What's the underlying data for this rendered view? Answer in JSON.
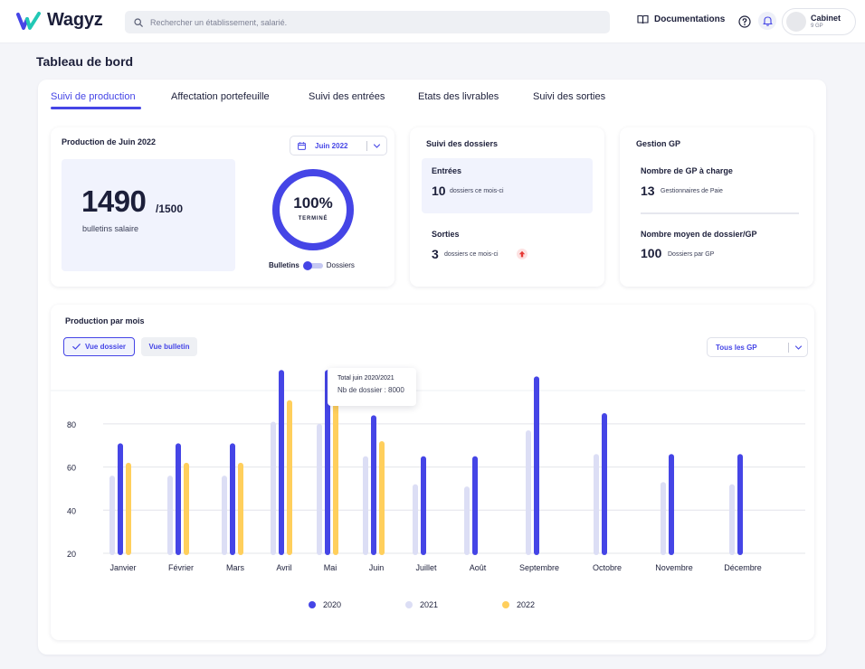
{
  "app": {
    "name": "Wagyz"
  },
  "search": {
    "placeholder": "Rechercher un établissement, salarié."
  },
  "header": {
    "docs_label": "Documentations",
    "account_name": "Cabinet",
    "account_sub": "9 GP"
  },
  "page": {
    "title": "Tableau de bord"
  },
  "tabs": [
    {
      "label": "Suivi de production",
      "active": true
    },
    {
      "label": "Affectation portefeuille"
    },
    {
      "label": "Suivi des entrées"
    },
    {
      "label": "Etats des livrables"
    },
    {
      "label": "Suivi des sorties"
    }
  ],
  "production": {
    "title": "Production de Juin 2022",
    "month_selector": "Juin 2022",
    "count": "1490",
    "total": "/1500",
    "unit": "bulletins salaire",
    "percent_label": "100%",
    "percent_value": 1.0,
    "status": "TERMINÉ",
    "toggle_left": "Bulletins",
    "toggle_right": "Dossiers"
  },
  "dossiers": {
    "title": "Suivi des dossiers",
    "entrees_label": "Entrées",
    "entrees_value": "10",
    "entrees_sub": "dossiers ce mois-ci",
    "sorties_label": "Sorties",
    "sorties_value": "3",
    "sorties_sub": "dossiers ce mois-ci"
  },
  "gestion": {
    "title": "Gestion GP",
    "gp_label": "Nombre de GP à charge",
    "gp_value": "13",
    "gp_sub": "Gestionnaires de Paie",
    "avg_label": "Nombre moyen de dossier/GP",
    "avg_value": "100",
    "avg_sub": "Dossiers par GP"
  },
  "monthly": {
    "title": "Production par mois",
    "view_dossier": "Vue dossier",
    "view_bulletin": "Vue bulletin",
    "gp_filter": "Tous les GP",
    "tooltip_title": "Total juin 2020/2021",
    "tooltip_value": "Nb de dossier : 8000"
  },
  "colors": {
    "accent": "#4545e6",
    "series_2020": "#4545e6",
    "series_2021": "#dcdef5",
    "series_2022": "#ffcf5c"
  },
  "chart_data": {
    "type": "bar",
    "categories": [
      "Janvier",
      "Février",
      "Mars",
      "Avril",
      "Mai",
      "Juin",
      "Juillet",
      "Août",
      "Septembre",
      "Octobre",
      "Novembre",
      "Décembre"
    ],
    "series": [
      {
        "name": "2020",
        "values": [
          71,
          71,
          71,
          105,
          105,
          84,
          65,
          65,
          102,
          85,
          66,
          66
        ]
      },
      {
        "name": "2021",
        "values": [
          56,
          56,
          56,
          81,
          80,
          65,
          52,
          51,
          77,
          66,
          53,
          52
        ]
      },
      {
        "name": "2022",
        "values": [
          62,
          62,
          62,
          91,
          91,
          72,
          null,
          null,
          null,
          null,
          null,
          null
        ]
      }
    ],
    "yticks": [
      20,
      40,
      60,
      80
    ],
    "ylim": [
      20,
      105
    ],
    "grid": true,
    "legend": "bottom-center"
  }
}
